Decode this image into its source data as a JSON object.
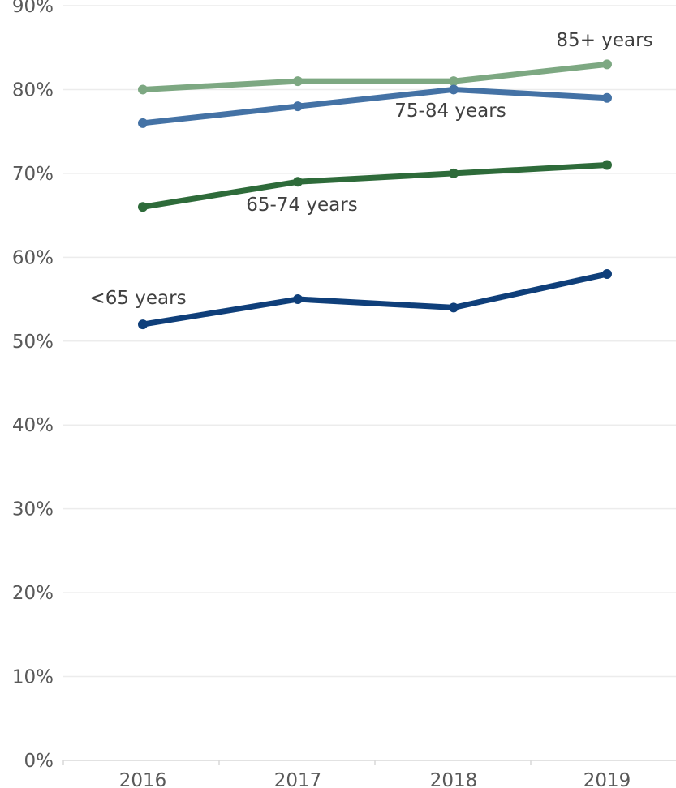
{
  "chart_data": {
    "type": "line",
    "title": "",
    "xlabel": "",
    "ylabel": "",
    "x": [
      "2016",
      "2017",
      "2018",
      "2019"
    ],
    "ylim": [
      0,
      90
    ],
    "yticks": [
      "0%",
      "10%",
      "20%",
      "30%",
      "40%",
      "50%",
      "60%",
      "70%",
      "80%",
      "90%"
    ],
    "grid": true,
    "legend": "none (series labeled directly on the lines)",
    "series": [
      {
        "name": "85+ years",
        "values": [
          80,
          81,
          81,
          83
        ],
        "color": "#7da882"
      },
      {
        "name": "75-84 years",
        "values": [
          76,
          78,
          80,
          79
        ],
        "color": "#4472a5"
      },
      {
        "name": "65-74 years",
        "values": [
          66,
          69,
          70,
          71
        ],
        "color": "#2e6b3a"
      },
      {
        "name": "<65 years",
        "values": [
          52,
          55,
          54,
          58
        ],
        "color": "#0f3f7a"
      }
    ]
  }
}
